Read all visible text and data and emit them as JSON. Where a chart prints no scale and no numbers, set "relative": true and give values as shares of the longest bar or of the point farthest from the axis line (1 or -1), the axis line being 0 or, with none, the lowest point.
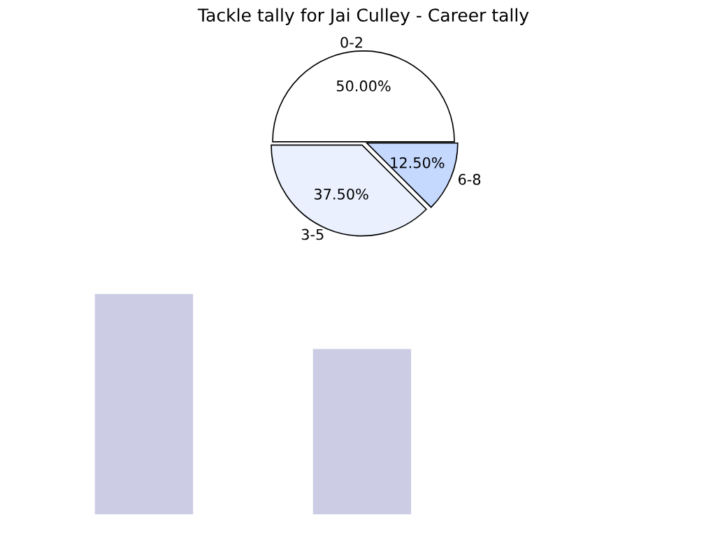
{
  "chart_data": [
    {
      "type": "pie",
      "title": "Tackle tally for Jai Culley - Career tally",
      "categories": [
        "0-2",
        "3-5",
        "6-8"
      ],
      "values": [
        50,
        37.5,
        12.5
      ],
      "value_labels": [
        "50.00%",
        "37.50%",
        "12.50%"
      ],
      "colors": [
        "#ffffff",
        "#eaf0fe",
        "#c5d8fe"
      ]
    },
    {
      "type": "bar",
      "relative": true,
      "categories": [
        null,
        null
      ],
      "values": [
        1,
        0.75
      ],
      "color": "#cccce4"
    }
  ]
}
